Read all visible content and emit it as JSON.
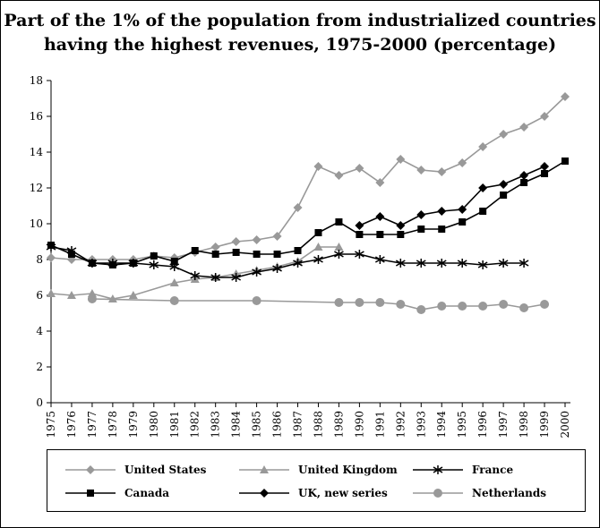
{
  "chart_data": {
    "type": "line",
    "title_line1": "Part of the 1% of the population from industrialized countries",
    "title_line2": "having the highest revenues, 1975-2000 (percentage)",
    "categories": [
      "1975",
      "1976",
      "1977",
      "1978",
      "1979",
      "1980",
      "1981",
      "1982",
      "1983",
      "1984",
      "1985",
      "1986",
      "1987",
      "1988",
      "1989",
      "1990",
      "1991",
      "1992",
      "1993",
      "1994",
      "1995",
      "1996",
      "1997",
      "1998",
      "1999",
      "2000"
    ],
    "ylim": [
      0,
      18
    ],
    "yticks": [
      0,
      2,
      4,
      6,
      8,
      10,
      12,
      14,
      16,
      18
    ],
    "grid": false,
    "legend_position": "bottom",
    "series": [
      {
        "name": "United States",
        "color": "#999999",
        "marker": "diamond",
        "values": [
          8.1,
          8.0,
          8.0,
          8.0,
          8.0,
          8.2,
          8.1,
          8.4,
          8.7,
          9.0,
          9.1,
          9.3,
          10.9,
          13.2,
          12.7,
          13.1,
          12.3,
          13.6,
          13.0,
          12.9,
          13.4,
          14.3,
          15.0,
          15.4,
          16.0,
          17.1
        ]
      },
      {
        "name": "United Kingdom",
        "color": "#999999",
        "marker": "triangle",
        "values": [
          6.1,
          6.0,
          6.1,
          5.8,
          6.0,
          null,
          6.7,
          6.9,
          7.0,
          7.2,
          7.4,
          7.6,
          7.9,
          8.7,
          8.7,
          null,
          null,
          null,
          null,
          null,
          null,
          null,
          null,
          null,
          null,
          null
        ]
      },
      {
        "name": "France",
        "color": "#000000",
        "marker": "star",
        "values": [
          8.7,
          8.5,
          7.8,
          7.8,
          7.8,
          7.7,
          7.6,
          7.1,
          7.0,
          7.0,
          7.3,
          7.5,
          7.8,
          8.0,
          8.3,
          8.3,
          8.0,
          7.8,
          7.8,
          7.8,
          7.8,
          7.7,
          7.8,
          7.8,
          null,
          null
        ]
      },
      {
        "name": "Canada",
        "color": "#000000",
        "marker": "square",
        "values": [
          8.8,
          8.3,
          7.8,
          7.7,
          7.8,
          8.2,
          7.9,
          8.5,
          8.3,
          8.4,
          8.3,
          8.3,
          8.5,
          9.5,
          10.1,
          9.4,
          9.4,
          9.4,
          9.7,
          9.7,
          10.1,
          10.7,
          11.6,
          12.3,
          12.8,
          13.5
        ]
      },
      {
        "name": "UK, new series",
        "color": "#000000",
        "marker": "diamond",
        "values": [
          null,
          null,
          null,
          null,
          null,
          null,
          null,
          null,
          null,
          null,
          null,
          null,
          null,
          null,
          null,
          9.9,
          10.4,
          9.9,
          10.5,
          10.7,
          10.8,
          12.0,
          12.2,
          12.7,
          13.2,
          null
        ]
      },
      {
        "name": "Netherlands",
        "color": "#999999",
        "marker": "circle",
        "values": [
          null,
          null,
          5.8,
          null,
          null,
          null,
          5.7,
          null,
          null,
          null,
          5.7,
          null,
          null,
          null,
          5.6,
          5.6,
          5.6,
          5.5,
          5.2,
          5.4,
          5.4,
          5.4,
          5.5,
          5.3,
          5.5,
          null
        ]
      }
    ]
  }
}
